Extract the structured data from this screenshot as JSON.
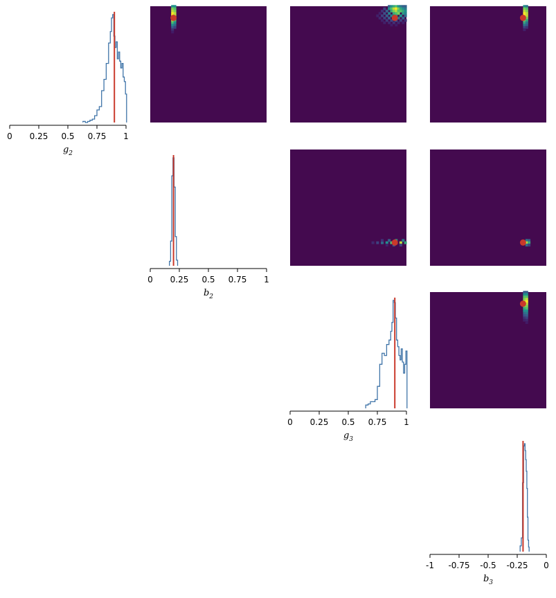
{
  "figure": {
    "colors": {
      "hist": "#3f74a8",
      "truth": "#c9392b",
      "heat_bg": "#440a4f",
      "axis": "#000000"
    }
  },
  "chart_data": [
    {
      "type": "histogram",
      "panel": "g2-marginal",
      "xlabel": "g",
      "xlabel_sub": "2",
      "xlim": [
        0,
        1
      ],
      "ticks": [
        0,
        0.25,
        0.5,
        0.75,
        1
      ],
      "tick_labels": [
        "0",
        "0.25",
        "0.5",
        "0.75",
        "1"
      ],
      "truth": 0.9,
      "x": [
        0.64,
        0.66,
        0.68,
        0.7,
        0.72,
        0.74,
        0.76,
        0.78,
        0.8,
        0.82,
        0.84,
        0.86,
        0.87,
        0.88,
        0.89,
        0.9,
        0.91,
        0.92,
        0.93,
        0.94,
        0.95,
        0.96,
        0.97,
        0.98,
        0.99,
        1.0
      ],
      "values": [
        1,
        0,
        1,
        2,
        3,
        6,
        11,
        14,
        28,
        38,
        52,
        70,
        80,
        92,
        95,
        76,
        66,
        71,
        56,
        62,
        54,
        48,
        52,
        40,
        36,
        25
      ]
    },
    {
      "type": "heatmap",
      "panel": "g2-vs-b2",
      "xlim": [
        0,
        1
      ],
      "ylim": [
        0,
        1
      ],
      "truth": [
        0.2,
        0.9
      ],
      "hot_cells": [
        [
          0.19,
          1.0,
          0.5
        ],
        [
          0.21,
          1.0,
          0.5
        ],
        [
          0.19,
          0.98,
          0.8
        ],
        [
          0.21,
          0.98,
          0.7
        ],
        [
          0.19,
          0.96,
          0.9
        ],
        [
          0.21,
          0.96,
          0.8
        ],
        [
          0.19,
          0.94,
          1.0
        ],
        [
          0.21,
          0.94,
          0.9
        ],
        [
          0.19,
          0.92,
          1.0
        ],
        [
          0.21,
          0.92,
          0.9
        ],
        [
          0.19,
          0.9,
          1.0
        ],
        [
          0.21,
          0.9,
          0.8
        ],
        [
          0.19,
          0.88,
          0.9
        ],
        [
          0.21,
          0.88,
          0.7
        ],
        [
          0.19,
          0.86,
          0.7
        ],
        [
          0.21,
          0.86,
          0.5
        ],
        [
          0.19,
          0.84,
          0.5
        ],
        [
          0.21,
          0.84,
          0.35
        ],
        [
          0.19,
          0.82,
          0.3
        ],
        [
          0.21,
          0.82,
          0.2
        ],
        [
          0.19,
          0.8,
          0.15
        ],
        [
          0.19,
          0.78,
          0.08
        ]
      ]
    },
    {
      "type": "heatmap",
      "panel": "g2-vs-g3",
      "xlim": [
        0,
        1
      ],
      "ylim": [
        0,
        1
      ],
      "truth": [
        0.9,
        0.9
      ],
      "hot_cells": [
        [
          0.85,
          1.0,
          0.3
        ],
        [
          0.87,
          1.0,
          0.5
        ],
        [
          0.89,
          1.0,
          0.6
        ],
        [
          0.91,
          1.0,
          0.7
        ],
        [
          0.93,
          1.0,
          0.5
        ],
        [
          0.95,
          1.0,
          0.4
        ],
        [
          0.97,
          1.0,
          0.3
        ],
        [
          0.99,
          1.0,
          0.3
        ],
        [
          0.81,
          0.98,
          0.2
        ],
        [
          0.85,
          0.98,
          0.5
        ],
        [
          0.87,
          0.98,
          0.7
        ],
        [
          0.89,
          0.98,
          0.9
        ],
        [
          0.91,
          0.98,
          1.0
        ],
        [
          0.93,
          0.98,
          0.8
        ],
        [
          0.95,
          0.98,
          0.6
        ],
        [
          0.97,
          0.98,
          0.5
        ],
        [
          0.99,
          0.98,
          0.4
        ],
        [
          0.79,
          0.96,
          0.15
        ],
        [
          0.83,
          0.96,
          0.3
        ],
        [
          0.87,
          0.96,
          0.6
        ],
        [
          0.89,
          0.96,
          0.8
        ],
        [
          0.91,
          0.96,
          0.9
        ],
        [
          0.93,
          0.96,
          0.7
        ],
        [
          0.95,
          0.96,
          0.7
        ],
        [
          0.97,
          0.96,
          0.6
        ],
        [
          0.99,
          0.96,
          0.5
        ],
        [
          0.77,
          0.94,
          0.1
        ],
        [
          0.81,
          0.94,
          0.25
        ],
        [
          0.85,
          0.94,
          0.45
        ],
        [
          0.89,
          0.94,
          0.6
        ],
        [
          0.91,
          0.94,
          0.7
        ],
        [
          0.93,
          0.94,
          0.8
        ],
        [
          0.97,
          0.94,
          0.55
        ],
        [
          0.99,
          0.94,
          0.45
        ],
        [
          0.75,
          0.92,
          0.1
        ],
        [
          0.79,
          0.92,
          0.2
        ],
        [
          0.83,
          0.92,
          0.3
        ],
        [
          0.87,
          0.92,
          0.45
        ],
        [
          0.91,
          0.92,
          0.55
        ],
        [
          0.95,
          0.92,
          0.5
        ],
        [
          0.99,
          0.92,
          0.35
        ],
        [
          0.77,
          0.9,
          0.12
        ],
        [
          0.81,
          0.9,
          0.2
        ],
        [
          0.85,
          0.9,
          0.3
        ],
        [
          0.89,
          0.9,
          0.35
        ],
        [
          0.93,
          0.9,
          0.4
        ],
        [
          0.97,
          0.9,
          0.3
        ],
        [
          0.79,
          0.88,
          0.1
        ],
        [
          0.83,
          0.88,
          0.18
        ],
        [
          0.87,
          0.88,
          0.22
        ],
        [
          0.91,
          0.88,
          0.25
        ],
        [
          0.95,
          0.88,
          0.2
        ],
        [
          0.99,
          0.88,
          0.15
        ],
        [
          0.81,
          0.86,
          0.1
        ],
        [
          0.85,
          0.86,
          0.12
        ],
        [
          0.89,
          0.86,
          0.15
        ],
        [
          0.93,
          0.86,
          0.12
        ],
        [
          0.97,
          0.86,
          0.1
        ],
        [
          0.87,
          0.84,
          0.08
        ],
        [
          0.91,
          0.84,
          0.08
        ]
      ]
    },
    {
      "type": "heatmap",
      "panel": "g2-vs-b3",
      "xlim": [
        -1,
        0
      ],
      "ylim": [
        0,
        1
      ],
      "truth": [
        -0.2,
        0.9
      ],
      "hot_cells": [
        [
          -0.19,
          1.0,
          0.5
        ],
        [
          -0.17,
          1.0,
          0.4
        ],
        [
          -0.19,
          0.98,
          0.8
        ],
        [
          -0.17,
          0.98,
          0.7
        ],
        [
          -0.19,
          0.96,
          0.9
        ],
        [
          -0.17,
          0.96,
          0.8
        ],
        [
          -0.19,
          0.94,
          1.0
        ],
        [
          -0.17,
          0.94,
          0.9
        ],
        [
          -0.19,
          0.92,
          1.0
        ],
        [
          -0.17,
          0.92,
          0.9
        ],
        [
          -0.19,
          0.9,
          0.9
        ],
        [
          -0.17,
          0.9,
          0.8
        ],
        [
          -0.19,
          0.88,
          0.8
        ],
        [
          -0.17,
          0.88,
          0.6
        ],
        [
          -0.19,
          0.86,
          0.6
        ],
        [
          -0.17,
          0.86,
          0.4
        ],
        [
          -0.19,
          0.84,
          0.4
        ],
        [
          -0.17,
          0.84,
          0.3
        ],
        [
          -0.19,
          0.82,
          0.2
        ],
        [
          -0.17,
          0.82,
          0.15
        ],
        [
          -0.19,
          0.8,
          0.1
        ]
      ]
    },
    {
      "type": "histogram",
      "panel": "b2-marginal",
      "xlabel": "b",
      "xlabel_sub": "2",
      "xlim": [
        0,
        1
      ],
      "ticks": [
        0,
        0.25,
        0.5,
        0.75,
        1
      ],
      "tick_labels": [
        "0",
        "0.25",
        "0.5",
        "0.75",
        "1"
      ],
      "truth": 0.2,
      "x": [
        0.17,
        0.18,
        0.19,
        0.2,
        0.21,
        0.22,
        0.23
      ],
      "values": [
        4,
        22,
        80,
        96,
        70,
        26,
        5
      ]
    },
    {
      "type": "heatmap",
      "panel": "b2-vs-g3",
      "xlim": [
        0,
        1
      ],
      "ylim": [
        0,
        1
      ],
      "truth": [
        0.9,
        0.2
      ],
      "hot_cells": [
        [
          0.71,
          0.2,
          0.12
        ],
        [
          0.75,
          0.2,
          0.2
        ],
        [
          0.79,
          0.2,
          0.35
        ],
        [
          0.83,
          0.2,
          0.5
        ],
        [
          0.87,
          0.2,
          0.7
        ],
        [
          0.91,
          0.2,
          1.0
        ],
        [
          0.95,
          0.2,
          0.9
        ],
        [
          0.99,
          0.2,
          0.6
        ],
        [
          0.79,
          0.22,
          0.15
        ],
        [
          0.85,
          0.22,
          0.3
        ],
        [
          0.91,
          0.22,
          0.55
        ],
        [
          0.97,
          0.22,
          0.4
        ],
        [
          0.83,
          0.18,
          0.1
        ],
        [
          0.89,
          0.18,
          0.25
        ],
        [
          0.95,
          0.18,
          0.2
        ]
      ]
    },
    {
      "type": "heatmap",
      "panel": "b2-vs-b3",
      "xlim": [
        -1,
        0
      ],
      "ylim": [
        0,
        1
      ],
      "truth": [
        -0.2,
        0.2
      ],
      "hot_cells": [
        [
          -0.17,
          0.22,
          0.4
        ],
        [
          -0.15,
          0.22,
          0.3
        ],
        [
          -0.17,
          0.2,
          0.9
        ],
        [
          -0.15,
          0.2,
          0.6
        ],
        [
          -0.17,
          0.18,
          0.35
        ],
        [
          -0.15,
          0.18,
          0.2
        ]
      ]
    },
    {
      "type": "histogram",
      "panel": "g3-marginal",
      "xlabel": "g",
      "xlabel_sub": "3",
      "xlim": [
        0,
        1
      ],
      "ticks": [
        0,
        0.25,
        0.5,
        0.75,
        1
      ],
      "tick_labels": [
        "0",
        "0.25",
        "0.5",
        "0.75",
        "1"
      ],
      "truth": 0.9,
      "x": [
        0.66,
        0.68,
        0.7,
        0.72,
        0.74,
        0.76,
        0.78,
        0.8,
        0.82,
        0.84,
        0.86,
        0.87,
        0.88,
        0.89,
        0.9,
        0.91,
        0.92,
        0.93,
        0.94,
        0.95,
        0.96,
        0.97,
        0.98,
        0.99,
        1.0
      ],
      "values": [
        3,
        4,
        6,
        6,
        8,
        20,
        40,
        50,
        48,
        58,
        62,
        70,
        78,
        98,
        96,
        82,
        62,
        56,
        48,
        44,
        54,
        42,
        32,
        40,
        52
      ]
    },
    {
      "type": "heatmap",
      "panel": "g3-vs-b3",
      "xlim": [
        -1,
        0
      ],
      "ylim": [
        0,
        1
      ],
      "truth": [
        -0.2,
        0.9
      ],
      "hot_cells": [
        [
          -0.19,
          1.0,
          0.3
        ],
        [
          -0.17,
          1.0,
          0.3
        ],
        [
          -0.19,
          0.98,
          0.5
        ],
        [
          -0.17,
          0.98,
          0.5
        ],
        [
          -0.19,
          0.96,
          0.7
        ],
        [
          -0.17,
          0.96,
          0.7
        ],
        [
          -0.19,
          0.94,
          0.8
        ],
        [
          -0.17,
          0.94,
          0.9
        ],
        [
          -0.19,
          0.92,
          0.9
        ],
        [
          -0.17,
          0.92,
          1.0
        ],
        [
          -0.19,
          0.9,
          0.9
        ],
        [
          -0.17,
          0.9,
          0.9
        ],
        [
          -0.19,
          0.88,
          0.8
        ],
        [
          -0.17,
          0.88,
          0.8
        ],
        [
          -0.19,
          0.86,
          0.6
        ],
        [
          -0.17,
          0.86,
          0.7
        ],
        [
          -0.19,
          0.84,
          0.5
        ],
        [
          -0.17,
          0.84,
          0.5
        ],
        [
          -0.19,
          0.82,
          0.35
        ],
        [
          -0.17,
          0.82,
          0.4
        ],
        [
          -0.19,
          0.8,
          0.25
        ],
        [
          -0.17,
          0.8,
          0.3
        ],
        [
          -0.19,
          0.78,
          0.15
        ],
        [
          -0.17,
          0.78,
          0.2
        ],
        [
          -0.19,
          0.76,
          0.1
        ],
        [
          -0.17,
          0.76,
          0.12
        ],
        [
          -0.17,
          0.74,
          0.08
        ]
      ]
    },
    {
      "type": "histogram",
      "panel": "b3-marginal",
      "xlabel": "b",
      "xlabel_sub": "3",
      "xlim": [
        -1,
        0
      ],
      "ticks": [
        -1,
        -0.75,
        -0.5,
        -0.25,
        0
      ],
      "tick_labels": [
        "-1",
        "-0.75",
        "-0.5",
        "-0.25",
        "0"
      ],
      "truth": -0.2,
      "x": [
        -0.22,
        -0.21,
        -0.2,
        -0.19,
        -0.185,
        -0.18,
        -0.175,
        -0.17,
        -0.165,
        -0.16,
        -0.155,
        -0.15
      ],
      "values": [
        5,
        12,
        60,
        92,
        94,
        88,
        80,
        70,
        55,
        30,
        10,
        4
      ]
    }
  ]
}
